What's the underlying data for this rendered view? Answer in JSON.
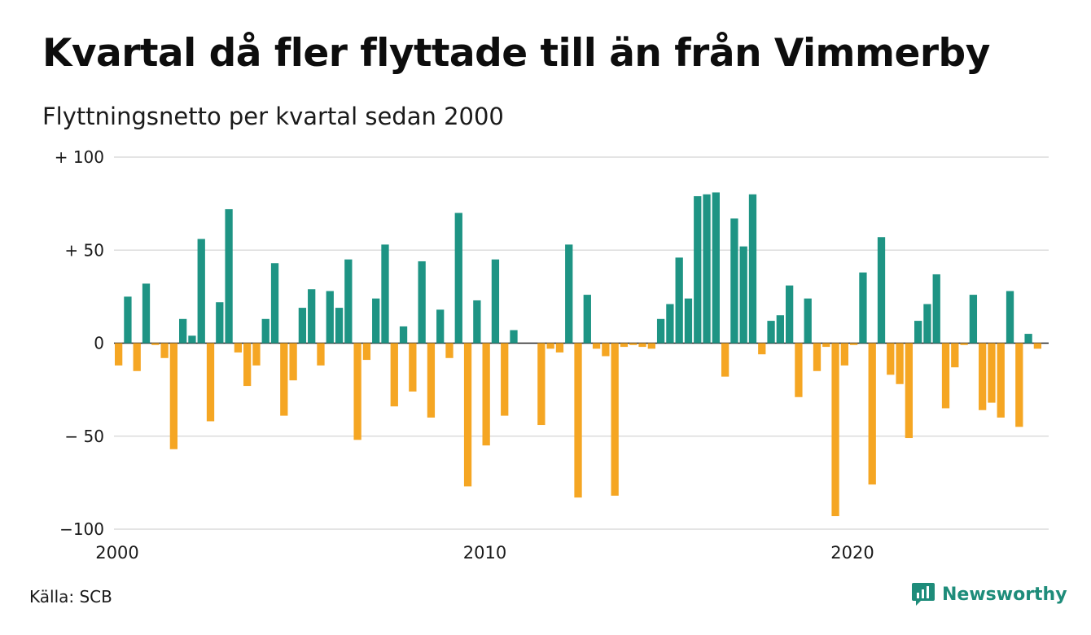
{
  "title": "Kvartal då fler flyttade till än från Vimmerby",
  "subtitle": "Flyttningsnetto per kvartal sedan 2000",
  "source": "Källa: SCB",
  "brand": "Newsworthy",
  "colors": {
    "positive": "#1e9484",
    "negative": "#f5a623",
    "grid": "#dcdcdc",
    "axis": "#222222",
    "brand": "#1e8c7a"
  },
  "chart_data": {
    "type": "bar",
    "start_year": 2000,
    "ylim": [
      -100,
      100
    ],
    "grid": true,
    "y_ticks": [
      {
        "value": 100,
        "label": "+ 100"
      },
      {
        "value": 50,
        "label": "+  50"
      },
      {
        "value": 0,
        "label": "0"
      },
      {
        "value": -50,
        "label": "− 50"
      },
      {
        "value": -100,
        "label": "−100"
      }
    ],
    "x_ticks": [
      {
        "year": 2000,
        "label": "2000"
      },
      {
        "year": 2010,
        "label": "2010"
      },
      {
        "year": 2020,
        "label": "2020"
      }
    ],
    "values": [
      -12,
      25,
      -15,
      32,
      -1,
      -8,
      -57,
      13,
      4,
      56,
      -42,
      22,
      72,
      -5,
      -23,
      -12,
      13,
      43,
      -39,
      -20,
      19,
      29,
      -12,
      28,
      19,
      45,
      -52,
      -9,
      24,
      53,
      -34,
      9,
      -26,
      44,
      -40,
      18,
      -8,
      70,
      -77,
      23,
      -55,
      45,
      -39,
      7,
      0,
      0,
      -44,
      -3,
      -5,
      53,
      -83,
      26,
      -3,
      -7,
      -82,
      -2,
      -1,
      -2,
      -3,
      13,
      21,
      46,
      24,
      79,
      80,
      81,
      -18,
      67,
      52,
      80,
      -6,
      12,
      15,
      31,
      -29,
      24,
      -15,
      -2,
      -93,
      -12,
      -1,
      38,
      -76,
      57,
      -17,
      -22,
      -51,
      12,
      21,
      37,
      -35,
      -13,
      -1,
      26,
      -36,
      -32,
      -40,
      28,
      -45,
      5,
      -3
    ]
  }
}
